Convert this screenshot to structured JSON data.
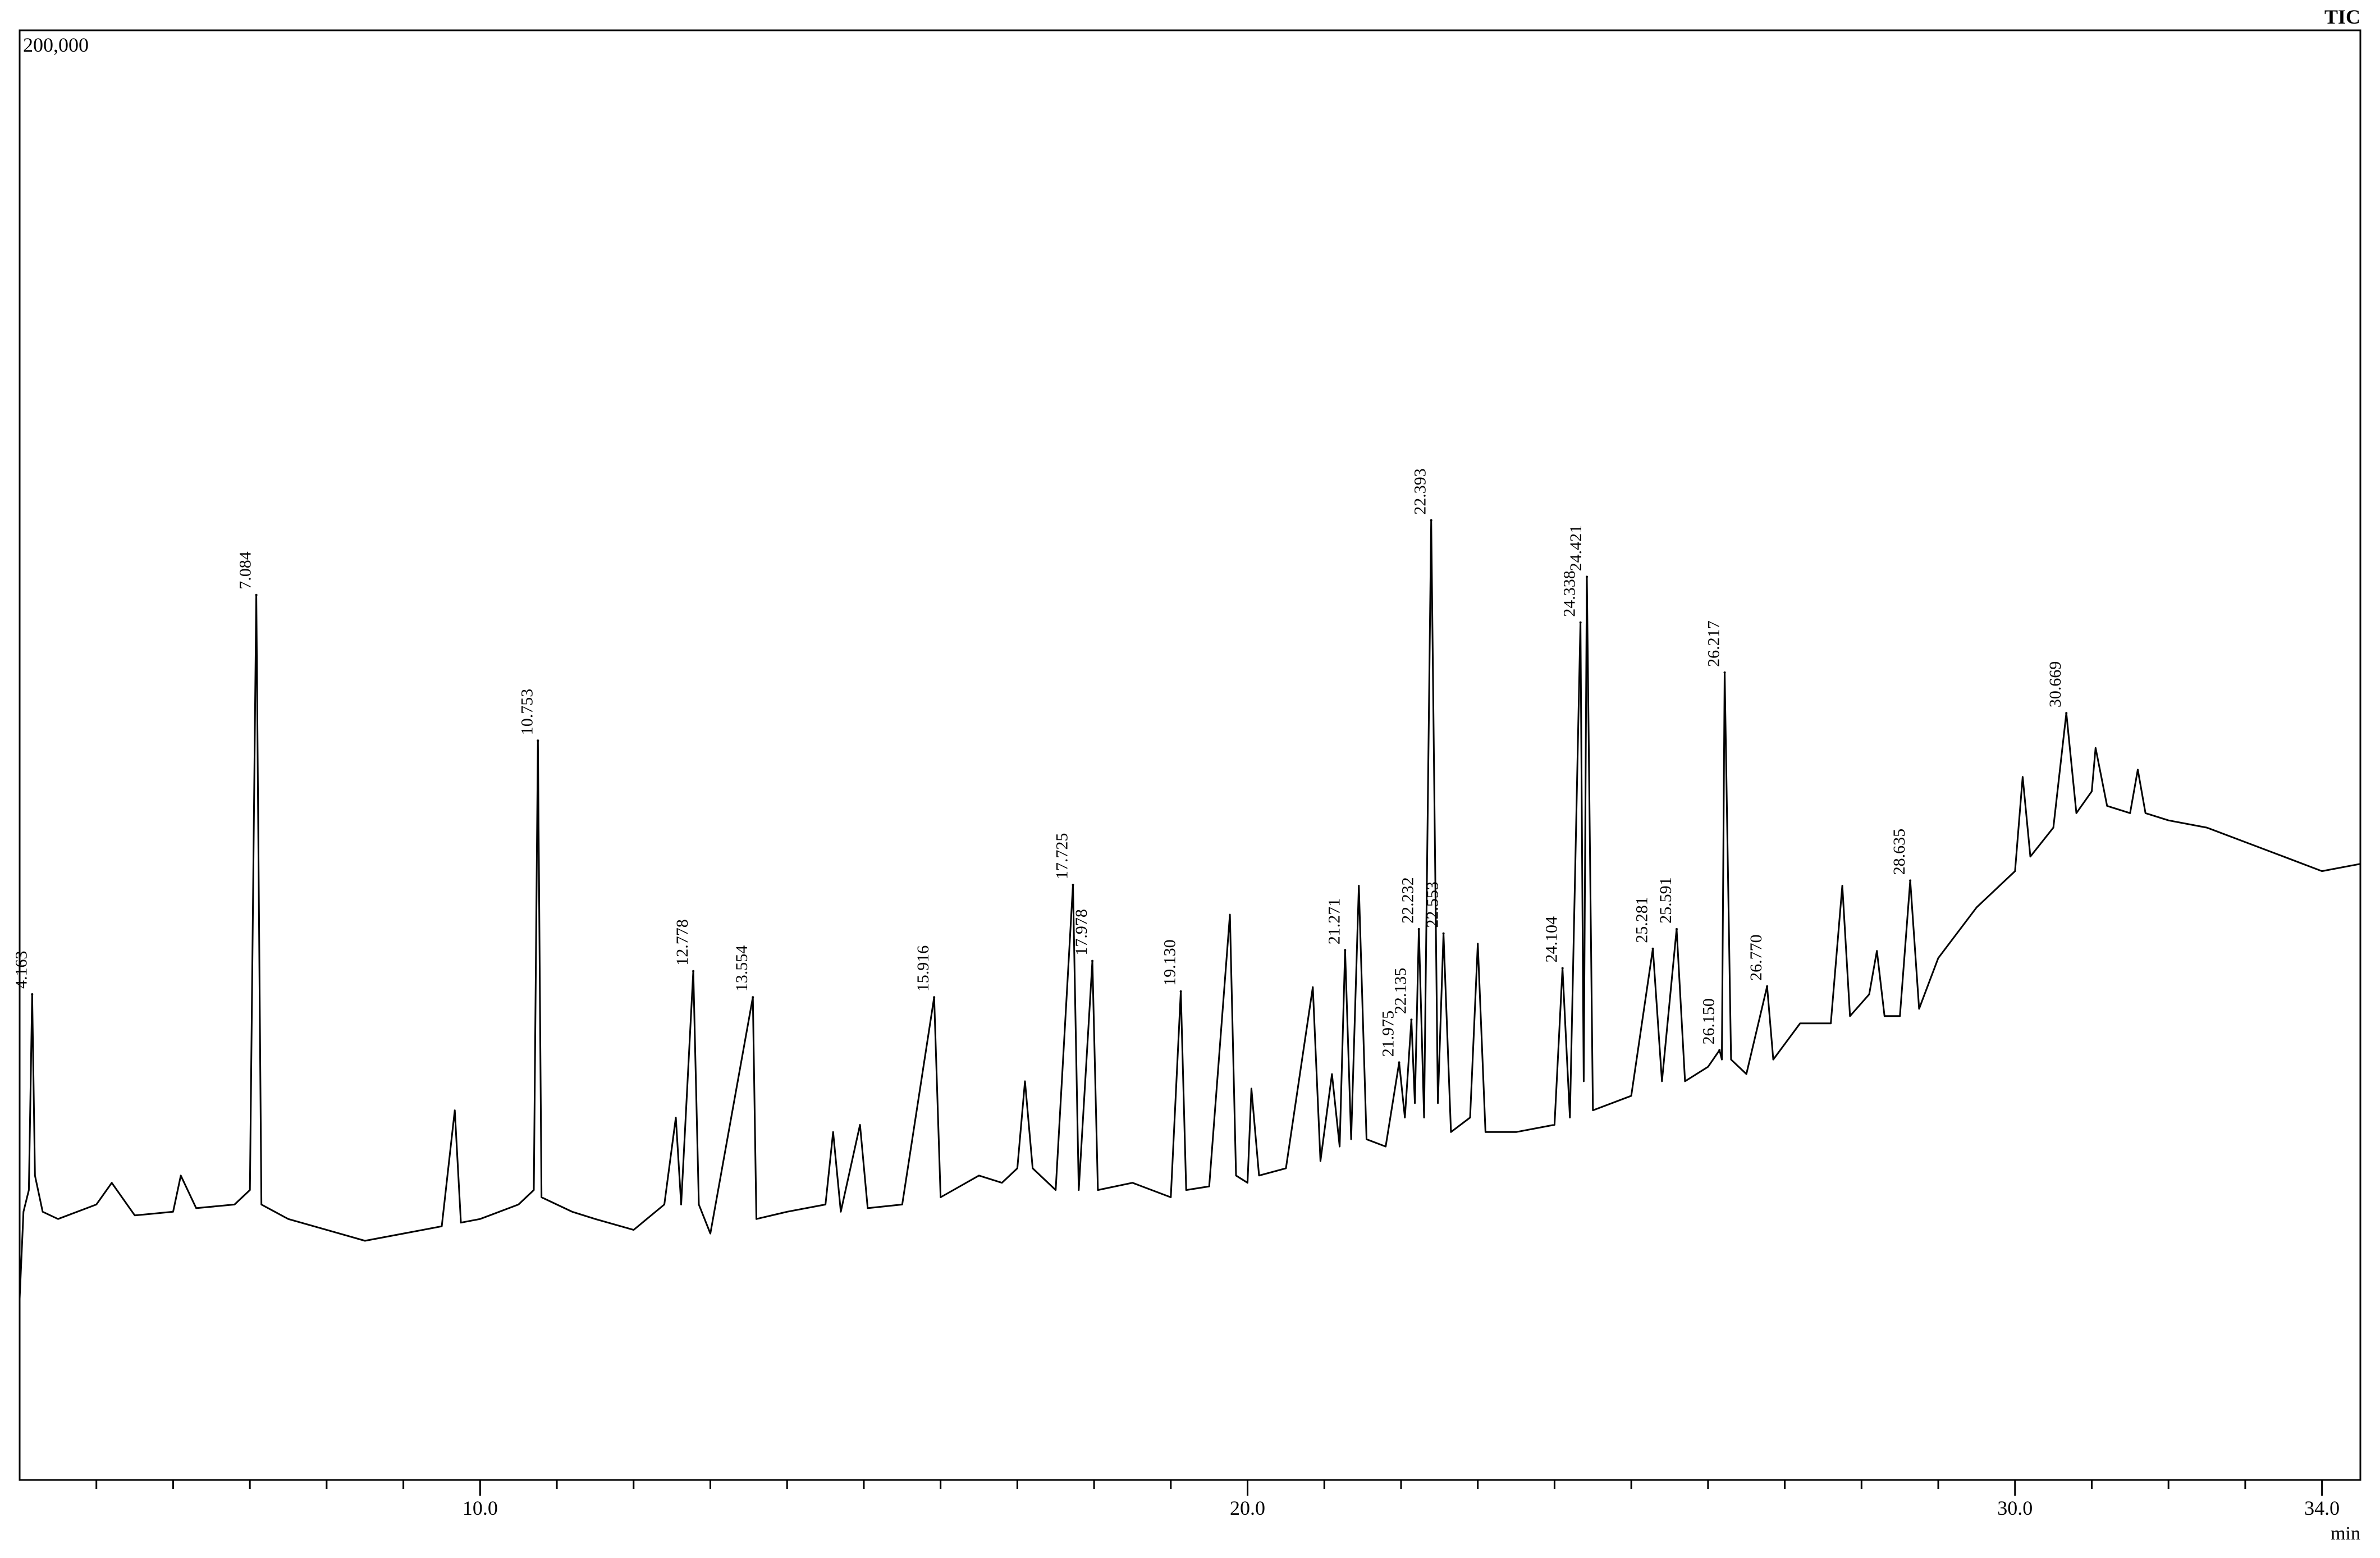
{
  "chart_data": {
    "type": "line",
    "signal": "TIC",
    "x_label": "min",
    "xlim": [
      4.0,
      34.5
    ],
    "ylim": [
      0,
      200000
    ],
    "xticks": [
      {
        "value": 10,
        "label": "10.0"
      },
      {
        "value": 20,
        "label": "20.0"
      },
      {
        "value": 30,
        "label": "30.0"
      },
      {
        "value": 34,
        "label": "34.0"
      }
    ],
    "xminorticks": [
      5,
      6,
      7,
      8,
      9,
      11,
      12,
      13,
      14,
      15,
      16,
      17,
      18,
      19,
      21,
      22,
      23,
      24,
      25,
      26,
      27,
      28,
      29,
      31,
      32,
      33
    ],
    "yticks": [
      {
        "value": 200000,
        "label": "200,000"
      }
    ],
    "color": "#000000",
    "x": [
      4.0,
      4.05,
      4.12,
      4.163,
      4.2,
      4.3,
      4.5,
      5.0,
      5.2,
      5.5,
      6.0,
      6.1,
      6.3,
      6.8,
      7.0,
      7.084,
      7.15,
      7.5,
      8.0,
      8.5,
      9.0,
      9.5,
      9.67,
      9.75,
      10.0,
      10.5,
      10.7,
      10.753,
      10.8,
      11.2,
      11.5,
      12.0,
      12.4,
      12.55,
      12.62,
      12.778,
      12.85,
      13.0,
      13.554,
      13.6,
      14.0,
      14.5,
      14.6,
      14.7,
      14.95,
      15.05,
      15.5,
      15.916,
      16.0,
      16.5,
      16.8,
      17.0,
      17.1,
      17.2,
      17.5,
      17.725,
      17.8,
      17.978,
      18.05,
      18.5,
      19.0,
      19.13,
      19.2,
      19.5,
      19.77,
      19.85,
      20.0,
      20.05,
      20.15,
      20.5,
      20.85,
      20.95,
      21.1,
      21.2,
      21.271,
      21.35,
      21.45,
      21.55,
      21.8,
      21.975,
      22.05,
      22.135,
      22.18,
      22.232,
      22.3,
      22.393,
      22.48,
      22.553,
      22.65,
      22.9,
      23.0,
      23.1,
      23.5,
      24.0,
      24.104,
      24.2,
      24.338,
      24.38,
      24.421,
      24.5,
      25.0,
      25.281,
      25.4,
      25.591,
      25.7,
      26.0,
      26.15,
      26.18,
      26.217,
      26.3,
      26.5,
      26.77,
      26.85,
      27.2,
      27.6,
      27.75,
      27.85,
      28.1,
      28.2,
      28.3,
      28.5,
      28.635,
      28.75,
      29.0,
      29.5,
      30.0,
      30.1,
      30.2,
      30.5,
      30.669,
      30.8,
      31.0,
      31.05,
      31.2,
      31.5,
      31.6,
      31.7,
      32.0,
      32.5,
      33.0,
      33.5,
      34.0,
      34.5
    ],
    "values": [
      25000,
      37000,
      40000,
      67000,
      42000,
      37000,
      36000,
      38000,
      41000,
      36500,
      37000,
      42000,
      37500,
      38000,
      40000,
      122100,
      38000,
      36000,
      34500,
      33000,
      34000,
      35000,
      51000,
      35500,
      36000,
      38000,
      40000,
      102000,
      39000,
      37000,
      36000,
      34500,
      38000,
      50000,
      38000,
      70200,
      38000,
      34000,
      66600,
      36000,
      37000,
      38000,
      48000,
      37000,
      49000,
      37500,
      38000,
      66600,
      39000,
      42000,
      41000,
      43000,
      55000,
      43000,
      40000,
      82100,
      40000,
      71600,
      40000,
      41000,
      39000,
      67400,
      40000,
      40500,
      78000,
      42000,
      41000,
      54000,
      42000,
      43000,
      68000,
      44000,
      56000,
      46000,
      73100,
      47000,
      82000,
      47000,
      46000,
      57600,
      50000,
      63500,
      52000,
      76000,
      50000,
      132400,
      52000,
      75400,
      48000,
      50000,
      74000,
      48000,
      48000,
      49000,
      70600,
      50000,
      118300,
      55000,
      124600,
      51000,
      53000,
      73300,
      55000,
      76000,
      55000,
      57000,
      59300,
      58000,
      111400,
      58000,
      56000,
      68100,
      58000,
      63000,
      63000,
      82000,
      64000,
      67000,
      73000,
      64000,
      64000,
      82700,
      65000,
      72000,
      79000,
      84000,
      97000,
      86000,
      90000,
      105800,
      92000,
      95000,
      101000,
      93000,
      92000,
      98000,
      92000,
      91000,
      90000,
      88000,
      86000,
      84000,
      85000
    ],
    "peaks": [
      {
        "x": 4.163,
        "y": 67000
      },
      {
        "x": 7.084,
        "y": 122100
      },
      {
        "x": 10.753,
        "y": 102000
      },
      {
        "x": 12.778,
        "y": 70200
      },
      {
        "x": 13.554,
        "y": 66600
      },
      {
        "x": 15.916,
        "y": 66600
      },
      {
        "x": 17.725,
        "y": 82100
      },
      {
        "x": 17.978,
        "y": 71600
      },
      {
        "x": 19.13,
        "y": 67400,
        "label": "19.130"
      },
      {
        "x": 21.271,
        "y": 73100
      },
      {
        "x": 21.975,
        "y": 57600
      },
      {
        "x": 22.135,
        "y": 63500
      },
      {
        "x": 22.232,
        "y": 76000
      },
      {
        "x": 22.393,
        "y": 132400
      },
      {
        "x": 22.553,
        "y": 75400
      },
      {
        "x": 24.104,
        "y": 70600
      },
      {
        "x": 24.338,
        "y": 118300
      },
      {
        "x": 24.421,
        "y": 124600
      },
      {
        "x": 25.281,
        "y": 73300
      },
      {
        "x": 25.591,
        "y": 76000
      },
      {
        "x": 26.15,
        "y": 59300,
        "label": "26.150"
      },
      {
        "x": 26.217,
        "y": 111400
      },
      {
        "x": 26.77,
        "y": 68100,
        "label": "26.770"
      },
      {
        "x": 28.635,
        "y": 82700
      },
      {
        "x": 30.669,
        "y": 105800
      }
    ]
  }
}
